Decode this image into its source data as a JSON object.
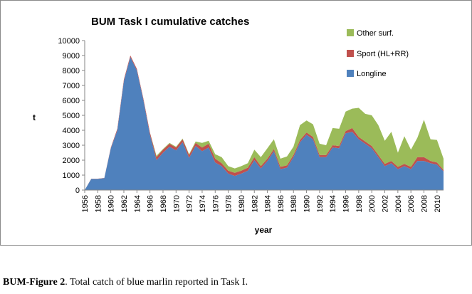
{
  "chart_data": {
    "type": "area",
    "stacked": true,
    "title": "BUM Task I cumulative catches",
    "xlabel": "year",
    "ylabel": "t",
    "ylim": [
      0,
      10000
    ],
    "yticks": [
      0,
      1000,
      2000,
      3000,
      4000,
      5000,
      6000,
      7000,
      8000,
      9000,
      10000
    ],
    "xticks": [
      "1956",
      "1958",
      "1960",
      "1962",
      "1964",
      "1966",
      "1968",
      "1970",
      "1972",
      "1974",
      "1976",
      "1978",
      "1980",
      "1982",
      "1984",
      "1986",
      "1988",
      "1990",
      "1992",
      "1994",
      "1996",
      "1998",
      "2000",
      "2002",
      "2004",
      "2006",
      "2008",
      "2010"
    ],
    "x": [
      1956,
      1957,
      1958,
      1959,
      1960,
      1961,
      1962,
      1963,
      1964,
      1965,
      1966,
      1967,
      1968,
      1969,
      1970,
      1971,
      1972,
      1973,
      1974,
      1975,
      1976,
      1977,
      1978,
      1979,
      1980,
      1981,
      1982,
      1983,
      1984,
      1985,
      1986,
      1987,
      1988,
      1989,
      1990,
      1991,
      1992,
      1993,
      1994,
      1995,
      1996,
      1997,
      1998,
      1999,
      2000,
      2001,
      2002,
      2003,
      2004,
      2005,
      2006,
      2007,
      2008,
      2009,
      2010,
      2011
    ],
    "series": [
      {
        "name": "Longline",
        "color": "#4f81bd",
        "values": [
          0,
          750,
          750,
          800,
          2800,
          4000,
          7300,
          8900,
          8000,
          6000,
          3700,
          2000,
          2500,
          2900,
          2650,
          3200,
          2150,
          2950,
          2600,
          2850,
          1850,
          1600,
          1100,
          950,
          1100,
          1300,
          2000,
          1450,
          1950,
          2600,
          1400,
          1500,
          2200,
          3200,
          3700,
          3400,
          2200,
          2200,
          2850,
          2800,
          3800,
          3900,
          3400,
          3100,
          2800,
          2200,
          1600,
          1800,
          1400,
          1600,
          1400,
          1950,
          1950,
          1800,
          1700,
          1250
        ]
      },
      {
        "name": "Sport (HL+RR)",
        "color": "#c0504d",
        "values": [
          0,
          10,
          10,
          10,
          50,
          100,
          100,
          100,
          100,
          100,
          150,
          200,
          200,
          200,
          200,
          200,
          200,
          200,
          250,
          250,
          250,
          200,
          200,
          200,
          200,
          200,
          200,
          150,
          150,
          150,
          150,
          150,
          150,
          150,
          150,
          150,
          150,
          150,
          150,
          150,
          150,
          250,
          150,
          150,
          150,
          150,
          150,
          150,
          150,
          150,
          150,
          250,
          250,
          150,
          150,
          100
        ]
      },
      {
        "name": "Other surf.",
        "color": "#9bbb59",
        "values": [
          0,
          0,
          0,
          0,
          0,
          0,
          0,
          0,
          0,
          0,
          0,
          100,
          50,
          50,
          50,
          50,
          50,
          100,
          300,
          200,
          300,
          400,
          300,
          300,
          300,
          300,
          500,
          600,
          700,
          650,
          550,
          600,
          550,
          1000,
          800,
          850,
          750,
          650,
          1150,
          1150,
          1300,
          1300,
          1950,
          1850,
          2050,
          2000,
          1550,
          1950,
          950,
          1850,
          1150,
          1300,
          2500,
          1450,
          1500,
          750
        ]
      }
    ],
    "legend": {
      "placement": "top-right",
      "order": [
        "Other surf.",
        "Sport (HL+RR)",
        "Longline"
      ]
    },
    "grid": false
  },
  "caption": {
    "label": "BUM-Figure 2",
    "text": ". Total catch of blue marlin reported in Task I."
  }
}
